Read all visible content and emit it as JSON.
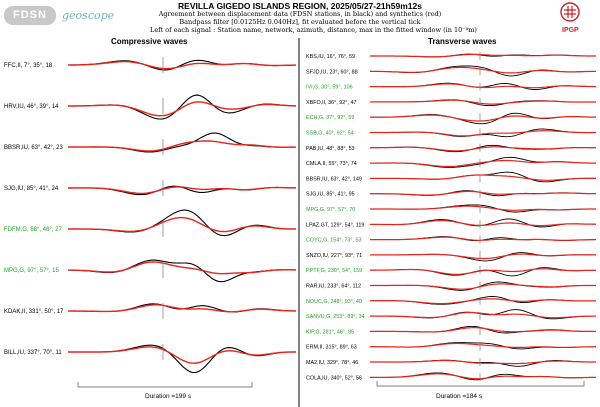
{
  "header": {
    "title": "REVILLA GIGEDO ISLANDS REGION, 2025/05/27-21h59m12s",
    "line2": "Agreement between displacement data (FDSN stations, in black) and synthetics (red)",
    "line3": "Bandpass filter [0.0125Hz 0.040Hz], fit evaluated before the vertical tick",
    "line4": "Left of each signal : Station name, network, azimuth, distance, max in the fitted window (in 10⁻⁸m)"
  },
  "logos": {
    "fdsn": "FDSN",
    "geoscope": "geoscope",
    "ipgp": "IPGP"
  },
  "colors": {
    "data": "#000000",
    "synthetic": "#e8231b",
    "geoscope_station": "#1fa51f",
    "ipgp": "#d0202a"
  },
  "chart_data": [
    {
      "type": "line",
      "title": "Compressive waves",
      "duration_label": "Duration =199 s",
      "duration_s": 199,
      "series": [
        {
          "name": "data (black)"
        },
        {
          "name": "synthetics (red)"
        }
      ],
      "stations": [
        {
          "label": "FFC,II, 7°, 35°, 18",
          "geoscope": false
        },
        {
          "label": "HRV,IU, 46°, 39°, 14",
          "geoscope": false
        },
        {
          "label": "BBSR,IU, 63°, 42°, 23",
          "geoscope": false
        },
        {
          "label": "SJG,IU, 85°, 41°, 24",
          "geoscope": false
        },
        {
          "label": "FDFM,G, 88°, 46°, 27",
          "geoscope": true
        },
        {
          "label": "MPG,G, 97°, 57°, 15",
          "geoscope": true
        },
        {
          "label": "KDAK,II, 331°, 50°, 17",
          "geoscope": false
        },
        {
          "label": "BILL,IU, 337°, 70°, 11",
          "geoscope": false
        }
      ]
    },
    {
      "type": "line",
      "title": "Transverse waves",
      "duration_label": "Duration =184 s",
      "duration_s": 184,
      "series": [
        {
          "name": "data (black)"
        },
        {
          "name": "synthetics (red)"
        }
      ],
      "stations": [
        {
          "label": "KBS,IU, 16°, 76°, 59",
          "geoscope": false
        },
        {
          "label": "SFJD,IU, 23°, 60°, 88",
          "geoscope": false
        },
        {
          "label": "IVI,G, 30°, 59°, 106",
          "geoscope": true
        },
        {
          "label": "XBFO,II, 36°, 92°, 47",
          "geoscope": false
        },
        {
          "label": "ECH,G, 37°, 92°, 59",
          "geoscope": true
        },
        {
          "label": "SSB,G, 40°, 92°, 54",
          "geoscope": true
        },
        {
          "label": "PAB,IU, 48°, 88°, 53",
          "geoscope": false
        },
        {
          "label": "CMLA,II, 55°, 73°, 74",
          "geoscope": false
        },
        {
          "label": "BBSR,IU, 63°, 42°, 149",
          "geoscope": false
        },
        {
          "label": "SJG,IU, 85°, 41°, 95",
          "geoscope": false
        },
        {
          "label": "MPG,G, 97°, 57°, 70",
          "geoscope": true
        },
        {
          "label": "LPAZ,GT, 129°, 54°, 119",
          "geoscope": false
        },
        {
          "label": "COYC,G, 154°, 73°, 53",
          "geoscope": true
        },
        {
          "label": "SNZO,IU, 227°, 93°, 71",
          "geoscope": false
        },
        {
          "label": "PPTF,G, 230°, 54°, 159",
          "geoscope": true
        },
        {
          "label": "RAR,IU, 233°, 64°, 112",
          "geoscope": false
        },
        {
          "label": "NOUC,G, 248°, 93°, 40",
          "geoscope": true
        },
        {
          "label": "SANVU,G, 253°, 89°, 34",
          "geoscope": true
        },
        {
          "label": "KIP,G, 281°, 46°, 95",
          "geoscope": true
        },
        {
          "label": "ERM,II, 315°, 89°, 63",
          "geoscope": false
        },
        {
          "label": "MA2,IU, 329°, 78°, 46",
          "geoscope": false
        },
        {
          "label": "COLA,IU, 340°, 52°, 56",
          "geoscope": false
        }
      ]
    }
  ]
}
